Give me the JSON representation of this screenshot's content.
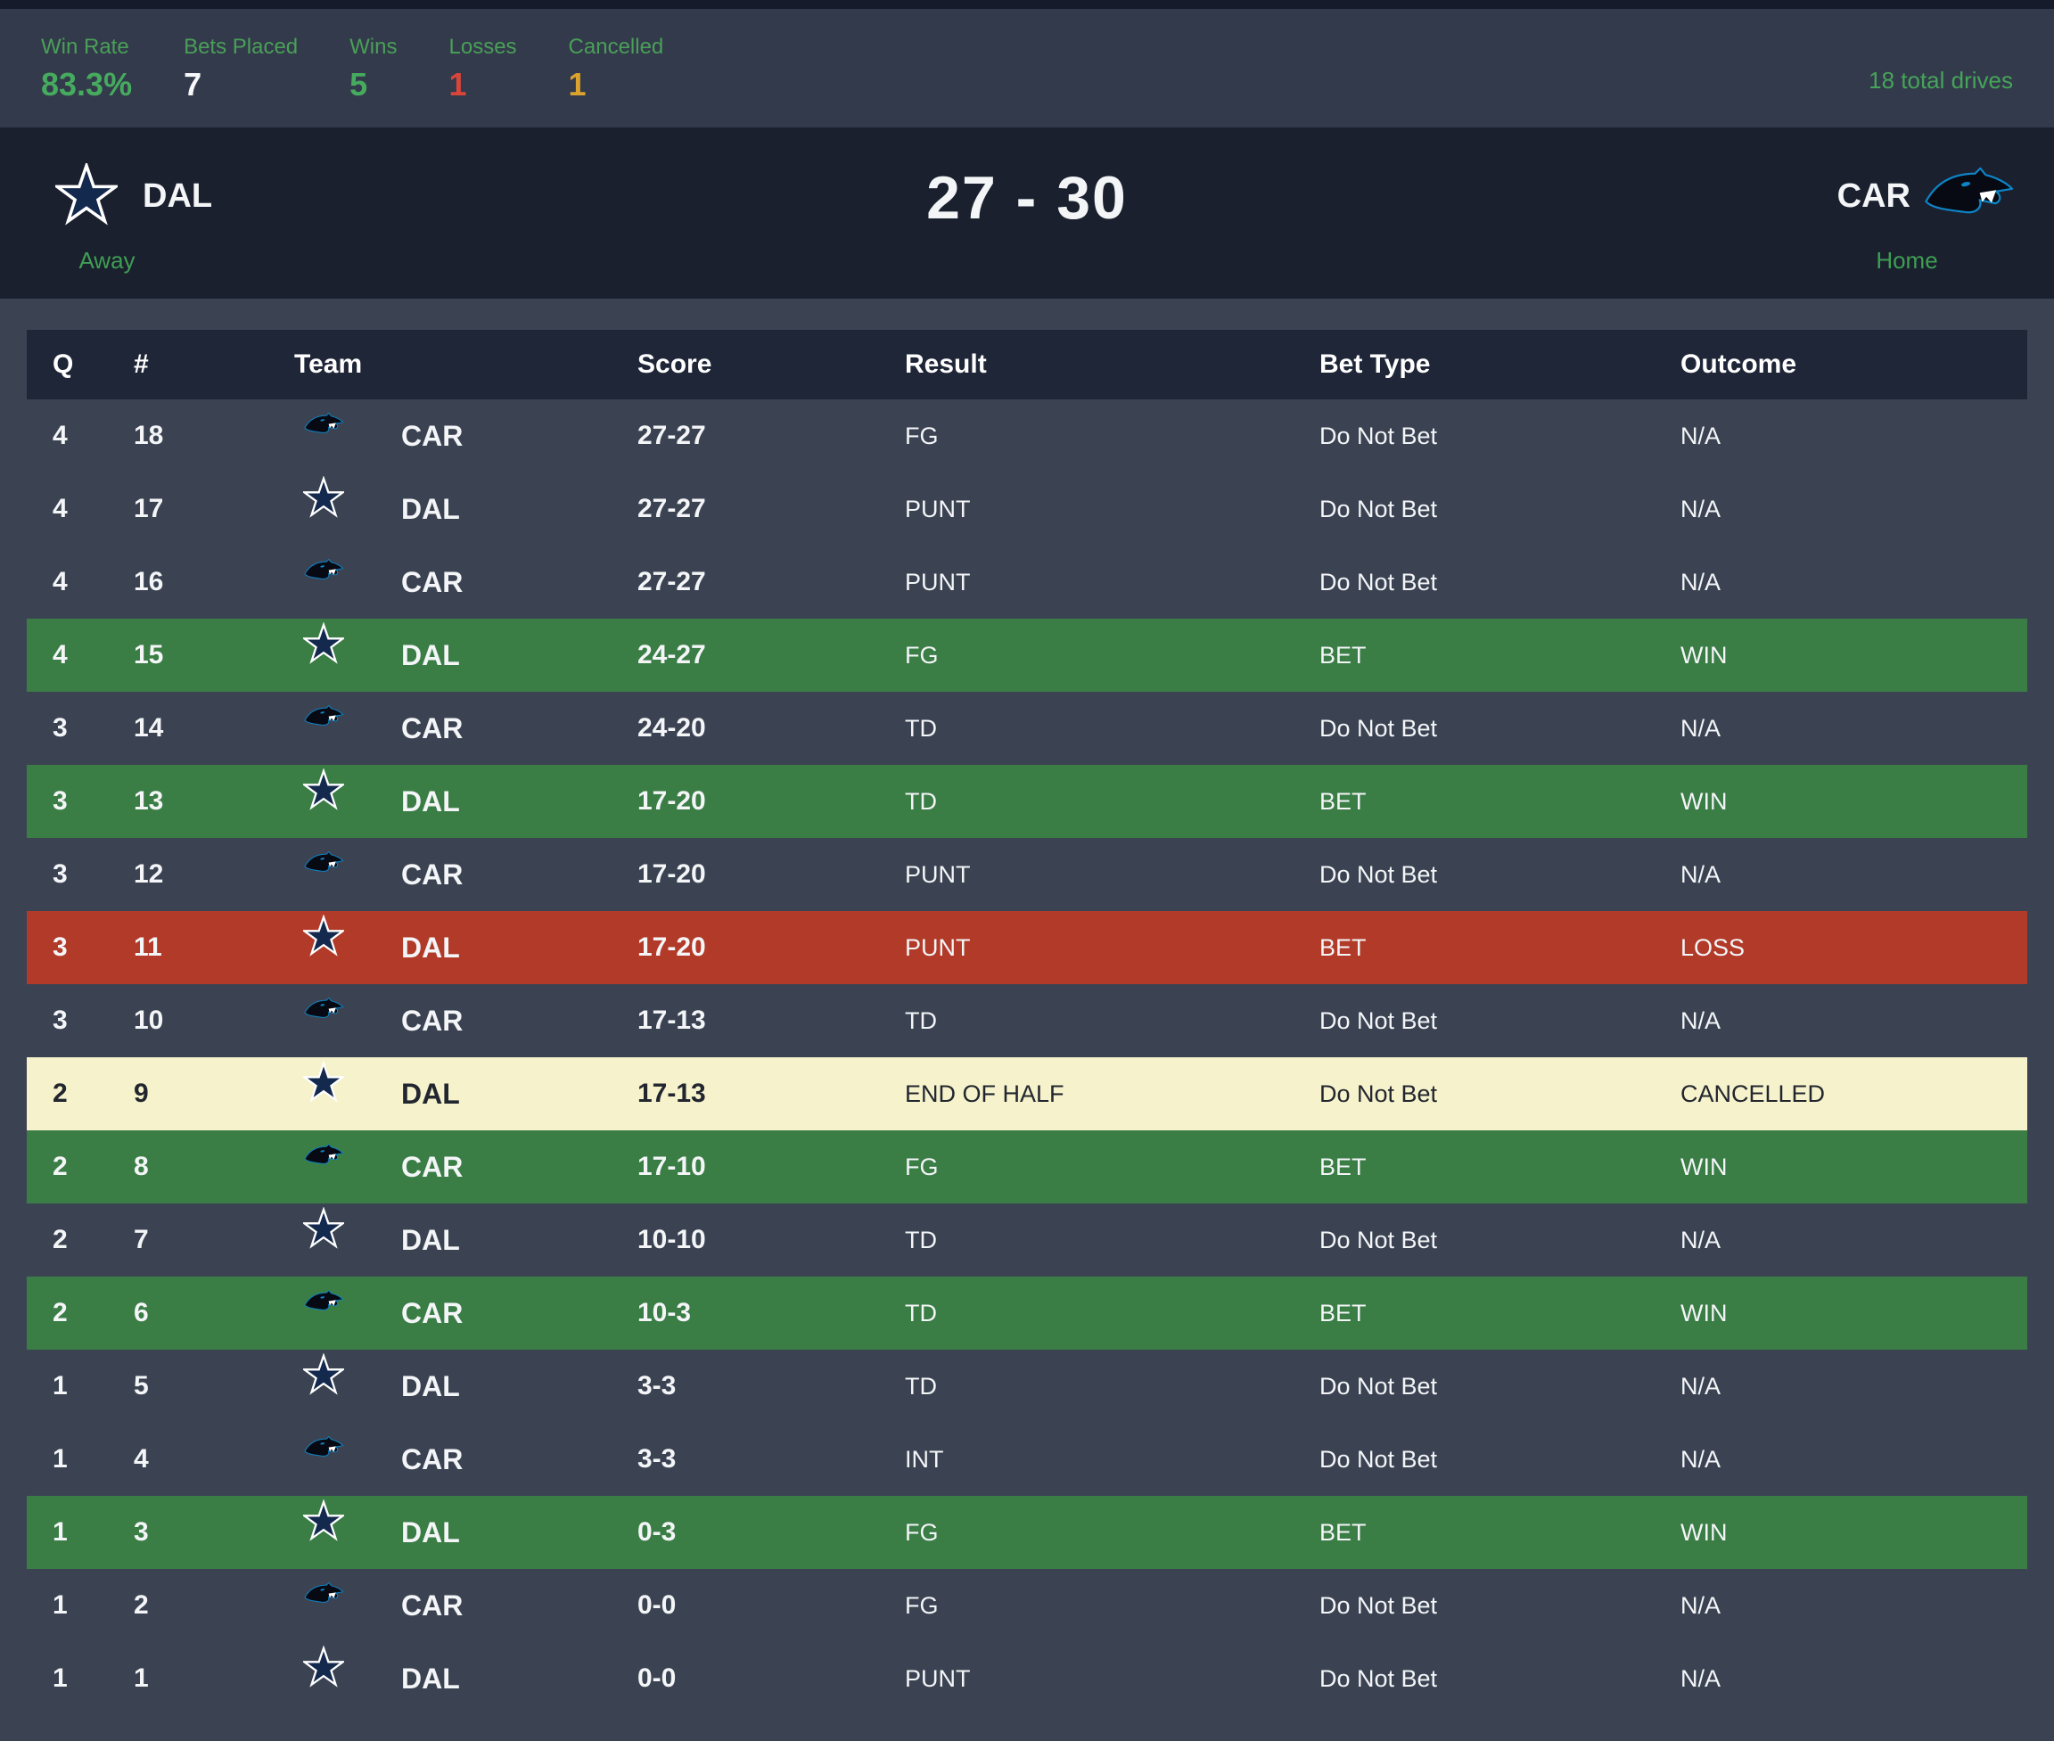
{
  "stats_bar": {
    "items": [
      {
        "label": "Win Rate",
        "value": "83.3%",
        "color_key": "green"
      },
      {
        "label": "Bets Placed",
        "value": "7",
        "color_key": "white"
      },
      {
        "label": "Wins",
        "value": "5",
        "color_key": "green"
      },
      {
        "label": "Losses",
        "value": "1",
        "color_key": "red"
      },
      {
        "label": "Cancelled",
        "value": "1",
        "color_key": "amber"
      }
    ],
    "total_drives": "18 total drives"
  },
  "scoreboard": {
    "score": "27 - 30",
    "away": {
      "abbr": "DAL",
      "location_label": "Away",
      "logo": "cowboys-star-logo"
    },
    "home": {
      "abbr": "CAR",
      "location_label": "Home",
      "logo": "panthers-logo"
    }
  },
  "drive_table": {
    "columns": [
      "Q",
      "#",
      "Team",
      "Score",
      "Result",
      "Bet Type",
      "Outcome"
    ],
    "rows": [
      {
        "q": "4",
        "num": "18",
        "team": "CAR",
        "logo": "panthers-logo",
        "score": "27-27",
        "result": "FG",
        "bet_type": "Do Not Bet",
        "outcome": "N/A",
        "status": "none"
      },
      {
        "q": "4",
        "num": "17",
        "team": "DAL",
        "logo": "cowboys-star-logo",
        "score": "27-27",
        "result": "PUNT",
        "bet_type": "Do Not Bet",
        "outcome": "N/A",
        "status": "none"
      },
      {
        "q": "4",
        "num": "16",
        "team": "CAR",
        "logo": "panthers-logo",
        "score": "27-27",
        "result": "PUNT",
        "bet_type": "Do Not Bet",
        "outcome": "N/A",
        "status": "none"
      },
      {
        "q": "4",
        "num": "15",
        "team": "DAL",
        "logo": "cowboys-star-logo",
        "score": "24-27",
        "result": "FG",
        "bet_type": "BET",
        "outcome": "WIN",
        "status": "win"
      },
      {
        "q": "3",
        "num": "14",
        "team": "CAR",
        "logo": "panthers-logo",
        "score": "24-20",
        "result": "TD",
        "bet_type": "Do Not Bet",
        "outcome": "N/A",
        "status": "none"
      },
      {
        "q": "3",
        "num": "13",
        "team": "DAL",
        "logo": "cowboys-star-logo",
        "score": "17-20",
        "result": "TD",
        "bet_type": "BET",
        "outcome": "WIN",
        "status": "win"
      },
      {
        "q": "3",
        "num": "12",
        "team": "CAR",
        "logo": "panthers-logo",
        "score": "17-20",
        "result": "PUNT",
        "bet_type": "Do Not Bet",
        "outcome": "N/A",
        "status": "none"
      },
      {
        "q": "3",
        "num": "11",
        "team": "DAL",
        "logo": "cowboys-star-logo",
        "score": "17-20",
        "result": "PUNT",
        "bet_type": "BET",
        "outcome": "LOSS",
        "status": "loss"
      },
      {
        "q": "3",
        "num": "10",
        "team": "CAR",
        "logo": "panthers-logo",
        "score": "17-13",
        "result": "TD",
        "bet_type": "Do Not Bet",
        "outcome": "N/A",
        "status": "none"
      },
      {
        "q": "2",
        "num": "9",
        "team": "DAL",
        "logo": "cowboys-star-logo",
        "score": "17-13",
        "result": "END OF HALF",
        "bet_type": "Do Not Bet",
        "outcome": "CANCELLED",
        "status": "cancelled"
      },
      {
        "q": "2",
        "num": "8",
        "team": "CAR",
        "logo": "panthers-logo",
        "score": "17-10",
        "result": "FG",
        "bet_type": "BET",
        "outcome": "WIN",
        "status": "win"
      },
      {
        "q": "2",
        "num": "7",
        "team": "DAL",
        "logo": "cowboys-star-logo",
        "score": "10-10",
        "result": "TD",
        "bet_type": "Do Not Bet",
        "outcome": "N/A",
        "status": "none"
      },
      {
        "q": "2",
        "num": "6",
        "team": "CAR",
        "logo": "panthers-logo",
        "score": "10-3",
        "result": "TD",
        "bet_type": "BET",
        "outcome": "WIN",
        "status": "win"
      },
      {
        "q": "1",
        "num": "5",
        "team": "DAL",
        "logo": "cowboys-star-logo",
        "score": "3-3",
        "result": "TD",
        "bet_type": "Do Not Bet",
        "outcome": "N/A",
        "status": "none"
      },
      {
        "q": "1",
        "num": "4",
        "team": "CAR",
        "logo": "panthers-logo",
        "score": "3-3",
        "result": "INT",
        "bet_type": "Do Not Bet",
        "outcome": "N/A",
        "status": "none"
      },
      {
        "q": "1",
        "num": "3",
        "team": "DAL",
        "logo": "cowboys-star-logo",
        "score": "0-3",
        "result": "FG",
        "bet_type": "BET",
        "outcome": "WIN",
        "status": "win"
      },
      {
        "q": "1",
        "num": "2",
        "team": "CAR",
        "logo": "panthers-logo",
        "score": "0-0",
        "result": "FG",
        "bet_type": "Do Not Bet",
        "outcome": "N/A",
        "status": "none"
      },
      {
        "q": "1",
        "num": "1",
        "team": "DAL",
        "logo": "cowboys-star-logo",
        "score": "0-0",
        "result": "PUNT",
        "bet_type": "Do Not Bet",
        "outcome": "N/A",
        "status": "none"
      }
    ]
  },
  "colors": {
    "accent_green": "#46ab5e",
    "label_green": "#4a9f58",
    "loss_red": "#da453a",
    "cancelled_amber": "#daa32e",
    "win_row": "#3a7d45",
    "loss_row": "#b23a29",
    "cancelled_row": "#f6f2cb",
    "header_bg": "#1f2637",
    "scoreboard_bg": "#1a202e",
    "stats_bar_bg": "#333a4b",
    "page_bg": "#3b4353"
  }
}
